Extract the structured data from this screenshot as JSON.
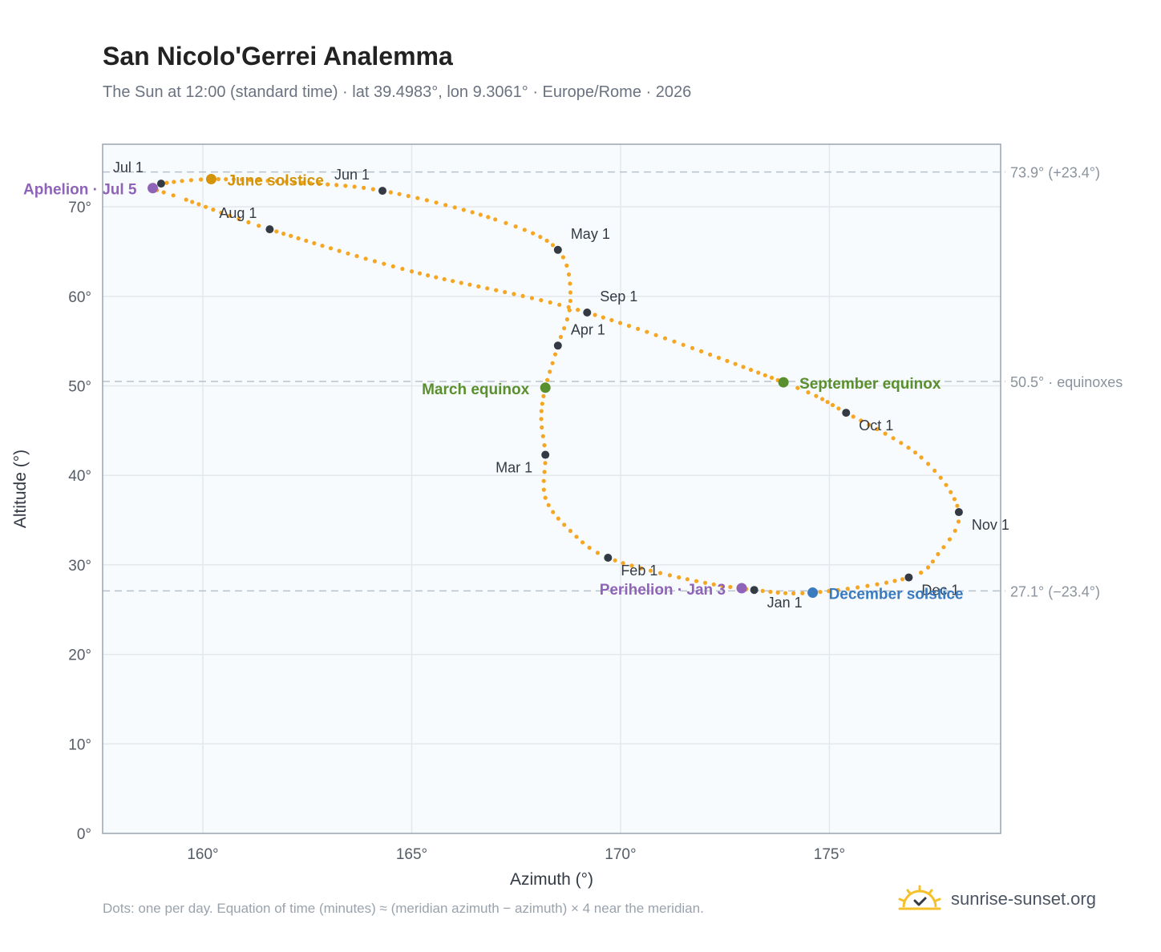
{
  "header": {
    "title": "San Nicolo'Gerrei Analemma",
    "subtitle": "The Sun at 12:00 (standard time) · lat 39.4983°, lon 9.3061° · Europe/Rome · 2026"
  },
  "footer": {
    "note": "Dots: one per day. Equation of time (minutes) ≈ (meridian azimuth − azimuth) × 4 near the meridian.",
    "brand": "sunrise-sunset.org",
    "brand_icon": "sun-logo-icon"
  },
  "colors": {
    "curve": "#f5a623",
    "month_dot": "#333a44",
    "solstice_june": "#d4940a",
    "solstice_december": "#3a7abf",
    "equinox": "#5a8f2e",
    "apsis": "#8e63b8",
    "guide": "#b8c2cc",
    "plot_bg": "#f8fbfd",
    "grid": "#e3e8ec",
    "frame": "#9aa5b1"
  },
  "chart_data": {
    "type": "scatter",
    "xlabel": "Azimuth (°)",
    "ylabel": "Altitude (°)",
    "xlim": [
      157.6,
      179.1
    ],
    "ylim": [
      0,
      77
    ],
    "xticks": [
      160,
      165,
      170,
      175
    ],
    "yticks": [
      0,
      10,
      20,
      30,
      40,
      50,
      60,
      70
    ],
    "x_tick_labels": [
      "160°",
      "165°",
      "170°",
      "175°"
    ],
    "y_tick_labels": [
      "0°",
      "10°",
      "20°",
      "30°",
      "40°",
      "50°",
      "60°",
      "70°"
    ],
    "grid": true,
    "curve_anchors": [
      {
        "x": 173.2,
        "y": 27.2
      },
      {
        "x": 171.6,
        "y": 28.4
      },
      {
        "x": 169.7,
        "y": 30.8
      },
      {
        "x": 168.8,
        "y": 33.8
      },
      {
        "x": 168.2,
        "y": 37.5
      },
      {
        "x": 168.2,
        "y": 42.3
      },
      {
        "x": 168.1,
        "y": 46.3
      },
      {
        "x": 168.2,
        "y": 49.8
      },
      {
        "x": 168.5,
        "y": 54.5
      },
      {
        "x": 168.8,
        "y": 59.5
      },
      {
        "x": 168.5,
        "y": 65.2
      },
      {
        "x": 167.0,
        "y": 68.6
      },
      {
        "x": 164.3,
        "y": 71.8
      },
      {
        "x": 162.0,
        "y": 72.8
      },
      {
        "x": 160.2,
        "y": 73.1
      },
      {
        "x": 159.0,
        "y": 72.6
      },
      {
        "x": 158.8,
        "y": 72.1
      },
      {
        "x": 159.6,
        "y": 70.8
      },
      {
        "x": 161.6,
        "y": 67.5
      },
      {
        "x": 165.0,
        "y": 62.8
      },
      {
        "x": 169.2,
        "y": 58.2
      },
      {
        "x": 173.9,
        "y": 50.4
      },
      {
        "x": 175.4,
        "y": 47.0
      },
      {
        "x": 177.2,
        "y": 42.0
      },
      {
        "x": 178.1,
        "y": 35.9
      },
      {
        "x": 177.6,
        "y": 31.2
      },
      {
        "x": 176.9,
        "y": 28.6
      },
      {
        "x": 174.6,
        "y": 26.9
      },
      {
        "x": 173.2,
        "y": 27.2
      }
    ],
    "month_markers": [
      {
        "label": "Jan 1",
        "x": 173.2,
        "y": 27.2,
        "anchor": "start",
        "dx": 16,
        "dy": 22
      },
      {
        "label": "Feb 1",
        "x": 169.7,
        "y": 30.8,
        "anchor": "start",
        "dx": 16,
        "dy": 22
      },
      {
        "label": "Mar 1",
        "x": 168.2,
        "y": 42.3,
        "anchor": "end",
        "dx": -16,
        "dy": 22
      },
      {
        "label": "Apr 1",
        "x": 168.5,
        "y": 54.5,
        "anchor": "start",
        "dx": 16,
        "dy": -14
      },
      {
        "label": "May 1",
        "x": 168.5,
        "y": 65.2,
        "anchor": "start",
        "dx": 16,
        "dy": -14
      },
      {
        "label": "Jun 1",
        "x": 164.3,
        "y": 71.8,
        "anchor": "end",
        "dx": -16,
        "dy": -14
      },
      {
        "label": "Jul 1",
        "x": 159.0,
        "y": 72.6,
        "anchor": "start",
        "dx": -60,
        "dy": -14
      },
      {
        "label": "Aug 1",
        "x": 161.6,
        "y": 67.5,
        "anchor": "end",
        "dx": -16,
        "dy": -14
      },
      {
        "label": "Sep 1",
        "x": 169.2,
        "y": 58.2,
        "anchor": "start",
        "dx": 16,
        "dy": -14
      },
      {
        "label": "Oct 1",
        "x": 175.4,
        "y": 47.0,
        "anchor": "start",
        "dx": 16,
        "dy": 22
      },
      {
        "label": "Nov 1",
        "x": 178.1,
        "y": 35.9,
        "anchor": "start",
        "dx": 16,
        "dy": 22
      },
      {
        "label": "Dec 1",
        "x": 176.9,
        "y": 28.6,
        "anchor": "start",
        "dx": 16,
        "dy": 22
      }
    ],
    "events": [
      {
        "label": "June solstice",
        "x": 160.2,
        "y": 73.1,
        "color_key": "solstice_june",
        "anchor": "start",
        "dx": 20,
        "dy": 8
      },
      {
        "label": "December solstice",
        "x": 174.6,
        "y": 26.9,
        "color_key": "solstice_december",
        "anchor": "start",
        "dx": 20,
        "dy": 8
      },
      {
        "label": "March equinox",
        "x": 168.2,
        "y": 49.8,
        "color_key": "equinox",
        "anchor": "end",
        "dx": -20,
        "dy": 8
      },
      {
        "label": "September equinox",
        "x": 173.9,
        "y": 50.4,
        "color_key": "equinox",
        "anchor": "start",
        "dx": 20,
        "dy": 8
      },
      {
        "label": "Aphelion · Jul 5",
        "x": 158.8,
        "y": 72.1,
        "color_key": "apsis",
        "anchor": "end",
        "dx": -20,
        "dy": 8
      },
      {
        "label": "Perihelion · Jan 3",
        "x": 172.9,
        "y": 27.4,
        "color_key": "apsis",
        "anchor": "end",
        "dx": -20,
        "dy": 8
      }
    ],
    "reference_lines": [
      {
        "y": 73.9,
        "label": "73.9° (+23.4°)"
      },
      {
        "y": 50.5,
        "label": "50.5° · equinoxes"
      },
      {
        "y": 27.1,
        "label": "27.1° (−23.4°)"
      }
    ]
  }
}
